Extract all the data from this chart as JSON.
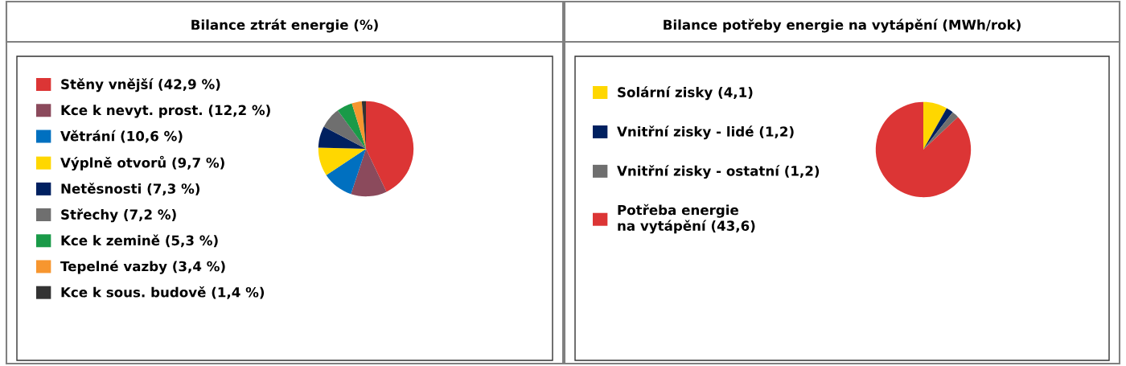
{
  "chart_data": [
    {
      "type": "pie",
      "title": "Bilance ztrát energie (%)",
      "legend": "left",
      "categories": [
        "Stěny vnější (42,9 %)",
        "Kce k nevyt. prost. (12,2 %)",
        "Větrání (10,6 %)",
        "Výplně otvorů (9,7 %)",
        "Netěsnosti (7,3 %)",
        "Střechy (7,2 %)",
        "Kce k zemině (5,3 %)",
        "Tepelné vazby (3,4 %)",
        "Kce k sous. budově (1,4 %)"
      ],
      "values": [
        42.9,
        12.2,
        10.6,
        9.7,
        7.3,
        7.2,
        5.3,
        3.4,
        1.4
      ],
      "colors": [
        "#dc3535",
        "#8b4a5c",
        "#0070c0",
        "#ffd700",
        "#002060",
        "#6f6f6f",
        "#1a9a48",
        "#f7962f",
        "#333333"
      ]
    },
    {
      "type": "pie",
      "title": "Bilance potřeby energie na vytápění (MWh/rok)",
      "legend": "left",
      "categories": [
        "Solární zisky (4,1)",
        "Vnitřní zisky - lidé (1,2)",
        "Vnitřní zisky - ostatní (1,2)",
        "Potřeba energie\nna vytápění (43,6)"
      ],
      "values": [
        4.1,
        1.2,
        1.2,
        43.6
      ],
      "colors": [
        "#ffd700",
        "#002060",
        "#6f6f6f",
        "#dc3535"
      ]
    }
  ]
}
